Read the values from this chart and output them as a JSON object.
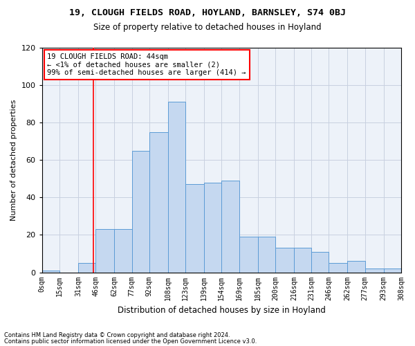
{
  "title1": "19, CLOUGH FIELDS ROAD, HOYLAND, BARNSLEY, S74 0BJ",
  "title2": "Size of property relative to detached houses in Hoyland",
  "xlabel": "Distribution of detached houses by size in Hoyland",
  "ylabel": "Number of detached properties",
  "bin_labels": [
    "0sqm",
    "15sqm",
    "31sqm",
    "46sqm",
    "62sqm",
    "77sqm",
    "92sqm",
    "108sqm",
    "123sqm",
    "139sqm",
    "154sqm",
    "169sqm",
    "185sqm",
    "200sqm",
    "216sqm",
    "231sqm",
    "246sqm",
    "262sqm",
    "277sqm",
    "293sqm",
    "308sqm"
  ],
  "bin_edges": [
    0,
    15,
    31,
    46,
    62,
    77,
    92,
    108,
    123,
    139,
    154,
    169,
    185,
    200,
    216,
    231,
    246,
    262,
    277,
    293,
    308
  ],
  "heights": [
    1,
    0,
    5,
    23,
    23,
    65,
    75,
    91,
    47,
    48,
    49,
    19,
    19,
    13,
    13,
    11,
    5,
    6,
    2,
    2
  ],
  "bar_color": "#c5d8f0",
  "bar_edge_color": "#5b9bd5",
  "redline_x": 44,
  "annotation_text": "19 CLOUGH FIELDS ROAD: 44sqm\n← <1% of detached houses are smaller (2)\n99% of semi-detached houses are larger (414) →",
  "ylim": [
    0,
    120
  ],
  "yticks": [
    0,
    20,
    40,
    60,
    80,
    100,
    120
  ],
  "footer1": "Contains HM Land Registry data © Crown copyright and database right 2024.",
  "footer2": "Contains public sector information licensed under the Open Government Licence v3.0.",
  "bg_color": "#edf2f9",
  "grid_color": "#c8d0e0"
}
